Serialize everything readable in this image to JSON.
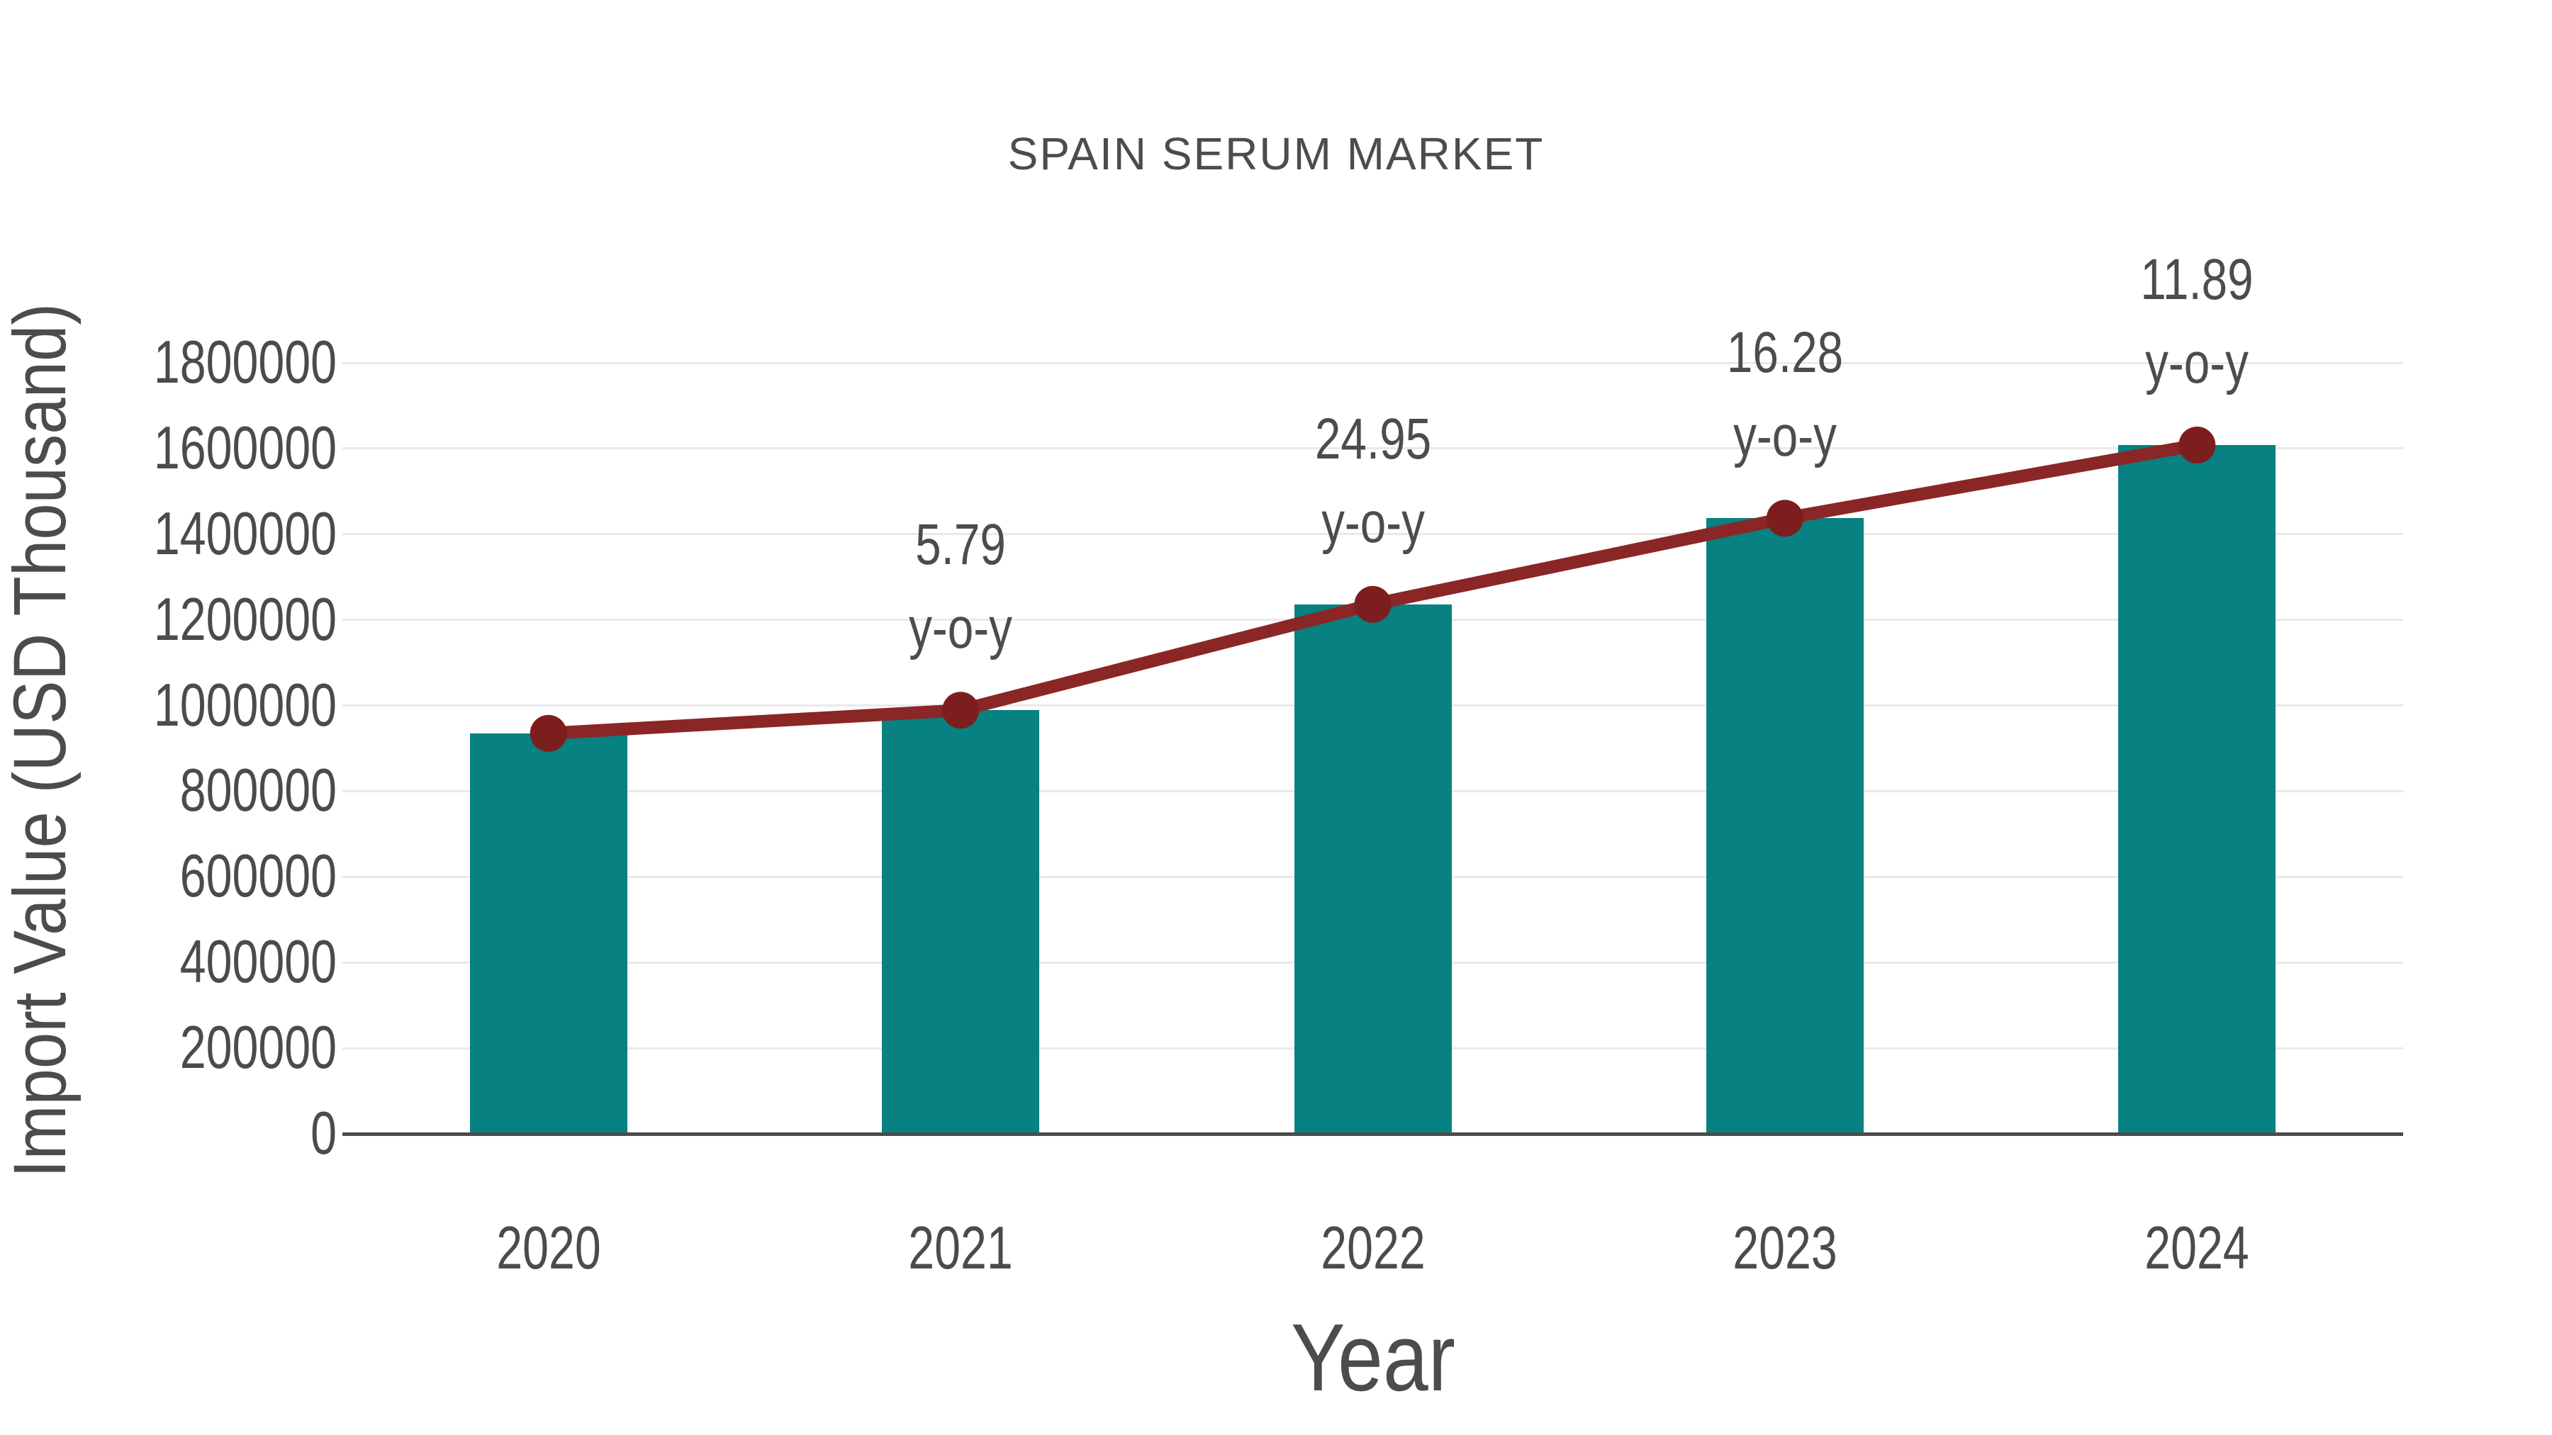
{
  "title": "SPAIN SERUM MARKET",
  "chart_data": {
    "type": "bar",
    "categories": [
      "2020",
      "2021",
      "2022",
      "2023",
      "2024"
    ],
    "series": [
      {
        "name": "Import Value",
        "type": "bar",
        "values": [
          935000,
          989000,
          1236000,
          1437000,
          1608000
        ]
      },
      {
        "name": "y-o-y growth",
        "type": "line",
        "values": [
          935000,
          989000,
          1236000,
          1437000,
          1608000
        ]
      }
    ],
    "annotations": [
      {
        "category": "2021",
        "value": "5.79",
        "suffix": "y-o-y"
      },
      {
        "category": "2022",
        "value": "24.95",
        "suffix": "y-o-y"
      },
      {
        "category": "2023",
        "value": "16.28",
        "suffix": "y-o-y"
      },
      {
        "category": "2024",
        "value": "11.89",
        "suffix": "y-o-y"
      }
    ],
    "title": "SPAIN SERUM MARKET",
    "xlabel": "Year",
    "ylabel": "Import Value (USD Thousand)",
    "ylim": [
      0,
      1800000
    ],
    "ytick_step": 200000,
    "yticks": [
      "0",
      "200000",
      "400000",
      "600000",
      "800000",
      "1000000",
      "1200000",
      "1400000",
      "1600000",
      "1800000"
    ],
    "grid": true,
    "legend": "none"
  },
  "colors": {
    "bar": "#078181",
    "line": "#8b2626",
    "dot": "#7c1e1e",
    "grid": "#e9e9e9",
    "axis": "#4b4b4b",
    "text": "#4c4c4c"
  }
}
